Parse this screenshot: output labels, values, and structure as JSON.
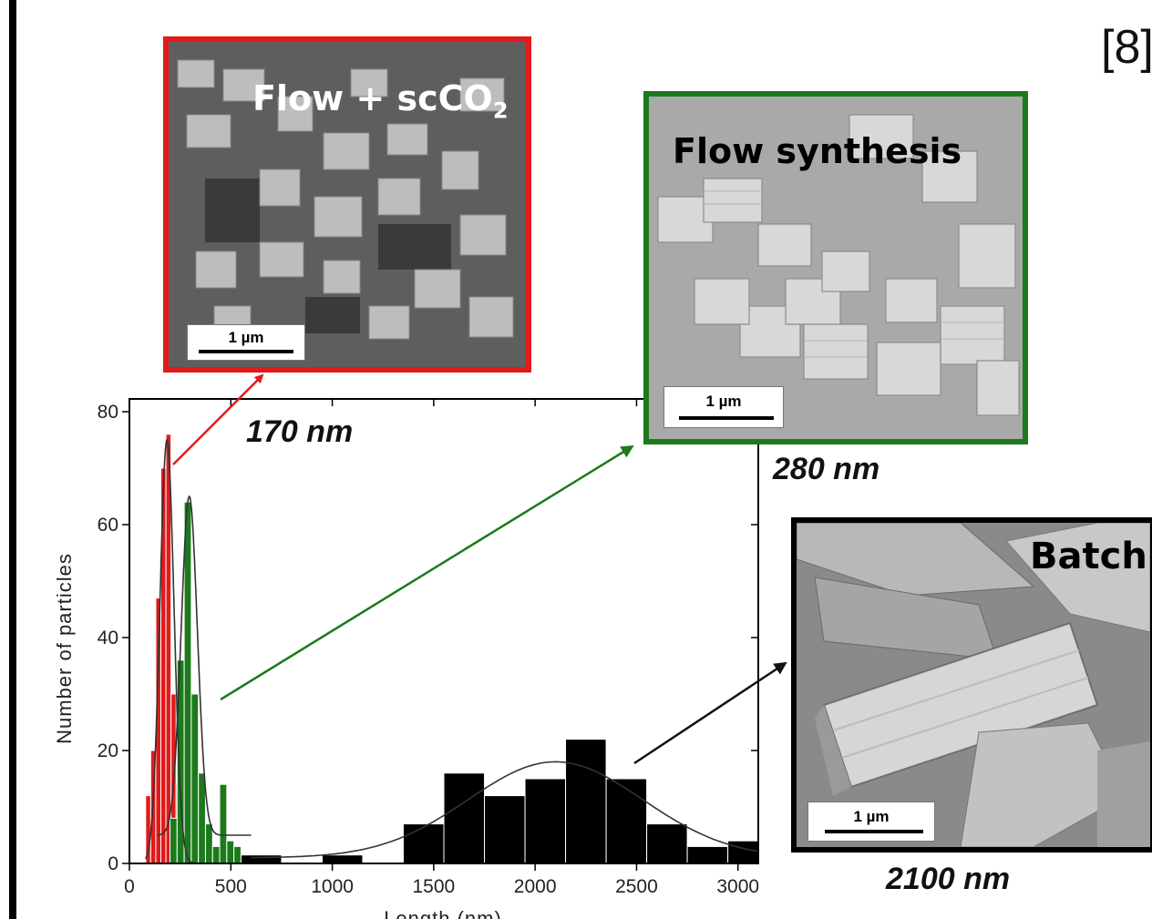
{
  "reference": "[8]",
  "panels": {
    "flow_scco2": {
      "label_main": "Flow + scCO",
      "label_sub": "2",
      "scale": "1 µm",
      "size": "170 nm",
      "border_color": "#e21a1a"
    },
    "flow_synthesis": {
      "label": "Flow synthesis",
      "scale": "1 µm",
      "size": "280 nm",
      "border_color": "#1c7a1c"
    },
    "batch": {
      "label": "Batch",
      "scale": "1 µm",
      "size": "2100 nm",
      "border_color": "#000000"
    }
  },
  "chart_data": {
    "type": "bar",
    "ylabel": "Number of particles",
    "xlabel": "Length (nm)",
    "xlim": [
      0,
      3100
    ],
    "ylim": [
      0,
      80
    ],
    "xticks": [
      0,
      500,
      1000,
      1500,
      2000,
      2500,
      3000
    ],
    "yticks": [
      0,
      20,
      40,
      60,
      80
    ],
    "colors": {
      "flow_scco2": "#e21a1a",
      "flow": "#1c7a1c",
      "batch": "#000000"
    },
    "series": [
      {
        "id": "flow_scco2",
        "color": "#e21a1a",
        "bins": [
          {
            "x0": 80,
            "x1": 105,
            "y": 12
          },
          {
            "x0": 105,
            "x1": 130,
            "y": 20
          },
          {
            "x0": 130,
            "x1": 155,
            "y": 47
          },
          {
            "x0": 155,
            "x1": 180,
            "y": 70
          },
          {
            "x0": 180,
            "x1": 205,
            "y": 76
          },
          {
            "x0": 205,
            "x1": 230,
            "y": 30
          },
          {
            "x0": 230,
            "x1": 255,
            "y": 14
          },
          {
            "x0": 255,
            "x1": 280,
            "y": 4
          },
          {
            "x0": 280,
            "x1": 305,
            "y": 2
          }
        ]
      },
      {
        "id": "flow",
        "color": "#1c7a1c",
        "bins": [
          {
            "x0": 200,
            "x1": 235,
            "y": 8
          },
          {
            "x0": 235,
            "x1": 270,
            "y": 36
          },
          {
            "x0": 270,
            "x1": 305,
            "y": 64
          },
          {
            "x0": 305,
            "x1": 340,
            "y": 30
          },
          {
            "x0": 340,
            "x1": 375,
            "y": 16
          },
          {
            "x0": 375,
            "x1": 410,
            "y": 7
          },
          {
            "x0": 410,
            "x1": 445,
            "y": 3
          },
          {
            "x0": 445,
            "x1": 480,
            "y": 14
          },
          {
            "x0": 480,
            "x1": 515,
            "y": 4
          },
          {
            "x0": 515,
            "x1": 550,
            "y": 3
          },
          {
            "x0": 550,
            "x1": 585,
            "y": 1
          }
        ]
      },
      {
        "id": "batch",
        "color": "#000000",
        "bins": [
          {
            "x0": 550,
            "x1": 750,
            "y": 1.5
          },
          {
            "x0": 950,
            "x1": 1150,
            "y": 1.5
          },
          {
            "x0": 1350,
            "x1": 1550,
            "y": 7
          },
          {
            "x0": 1550,
            "x1": 1750,
            "y": 16
          },
          {
            "x0": 1750,
            "x1": 1950,
            "y": 12
          },
          {
            "x0": 1950,
            "x1": 2150,
            "y": 15
          },
          {
            "x0": 2150,
            "x1": 2350,
            "y": 22
          },
          {
            "x0": 2350,
            "x1": 2550,
            "y": 15
          },
          {
            "x0": 2550,
            "x1": 2750,
            "y": 7
          },
          {
            "x0": 2750,
            "x1": 2950,
            "y": 3
          },
          {
            "x0": 2950,
            "x1": 3150,
            "y": 4
          }
        ]
      }
    ],
    "fits": [
      {
        "id": "flow_scco2_fit",
        "type": "gaussian",
        "center": 185,
        "sigma": 35,
        "amplitude": 75,
        "baseline": 0,
        "x_range": [
          80,
          330
        ]
      },
      {
        "id": "flow_fit",
        "type": "gaussian",
        "center": 295,
        "sigma": 40,
        "amplitude": 60,
        "baseline": 5,
        "x_range": [
          140,
          600
        ]
      },
      {
        "id": "batch_fit",
        "type": "gaussian",
        "center": 2100,
        "sigma": 430,
        "amplitude": 17,
        "baseline": 1,
        "x_range": [
          600,
          3100
        ]
      }
    ]
  }
}
